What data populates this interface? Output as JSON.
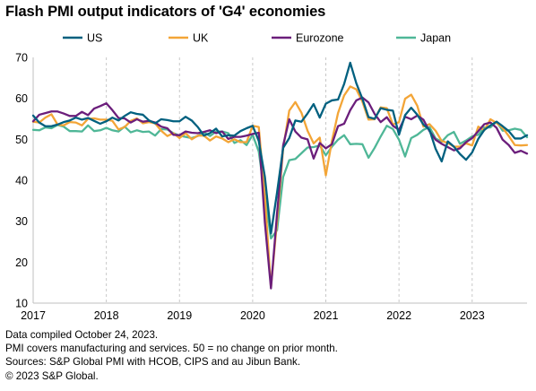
{
  "chart_data": {
    "type": "line",
    "title": "Flash PMI output indicators of 'G4' economies",
    "xlabel": "",
    "ylabel": "",
    "ylim": [
      10,
      70
    ],
    "yticks": [
      10,
      20,
      30,
      40,
      50,
      60,
      70
    ],
    "xlim": [
      "2017-01",
      "2023-10"
    ],
    "xticks": [
      "2017",
      "2018",
      "2019",
      "2020",
      "2021",
      "2022",
      "2023"
    ],
    "grid": "vertical-dashed",
    "legend_position": "top",
    "x": [
      "2017-01",
      "2017-02",
      "2017-03",
      "2017-04",
      "2017-05",
      "2017-06",
      "2017-07",
      "2017-08",
      "2017-09",
      "2017-10",
      "2017-11",
      "2017-12",
      "2018-01",
      "2018-02",
      "2018-03",
      "2018-04",
      "2018-05",
      "2018-06",
      "2018-07",
      "2018-08",
      "2018-09",
      "2018-10",
      "2018-11",
      "2018-12",
      "2019-01",
      "2019-02",
      "2019-03",
      "2019-04",
      "2019-05",
      "2019-06",
      "2019-07",
      "2019-08",
      "2019-09",
      "2019-10",
      "2019-11",
      "2019-12",
      "2020-01",
      "2020-02",
      "2020-03",
      "2020-04",
      "2020-05",
      "2020-06",
      "2020-07",
      "2020-08",
      "2020-09",
      "2020-10",
      "2020-11",
      "2020-12",
      "2021-01",
      "2021-02",
      "2021-03",
      "2021-04",
      "2021-05",
      "2021-06",
      "2021-07",
      "2021-08",
      "2021-09",
      "2021-10",
      "2021-11",
      "2021-12",
      "2022-01",
      "2022-02",
      "2022-03",
      "2022-04",
      "2022-05",
      "2022-06",
      "2022-07",
      "2022-08",
      "2022-09",
      "2022-10",
      "2022-11",
      "2022-12",
      "2023-01",
      "2023-02",
      "2023-03",
      "2023-04",
      "2023-05",
      "2023-06",
      "2023-07",
      "2023-08",
      "2023-09",
      "2023-10"
    ],
    "series": [
      {
        "name": "US",
        "color": "#00607f",
        "values": [
          55.8,
          54.1,
          53.2,
          53.2,
          53.6,
          54.2,
          54.6,
          55.3,
          54.8,
          55.2,
          54.5,
          53.8,
          54.4,
          55.3,
          54.6,
          55.7,
          56.6,
          56.2,
          56.0,
          54.6,
          53.9,
          54.9,
          54.7,
          54.4,
          54.4,
          55.5,
          54.6,
          53.0,
          50.9,
          51.5,
          52.6,
          50.7,
          51.0,
          50.9,
          52.0,
          52.7,
          53.3,
          49.6,
          40.9,
          27.0,
          37.0,
          47.9,
          50.3,
          54.6,
          54.3,
          56.3,
          58.6,
          55.3,
          58.7,
          59.5,
          59.7,
          63.5,
          68.7,
          63.7,
          59.9,
          55.4,
          55.0,
          57.6,
          57.2,
          57.0,
          51.1,
          55.9,
          57.7,
          56.0,
          53.6,
          52.3,
          47.7,
          44.6,
          49.5,
          48.2,
          46.4,
          45.0,
          46.8,
          50.1,
          52.3,
          53.4,
          54.3,
          53.2,
          52.0,
          50.2,
          50.2,
          51.0
        ]
      },
      {
        "name": "UK",
        "color": "#f3a537",
        "values": [
          54.3,
          54.1,
          55.3,
          56.1,
          53.6,
          53.4,
          54.2,
          54.1,
          53.4,
          55.0,
          55.1,
          54.8,
          54.8,
          54.5,
          52.4,
          53.0,
          54.5,
          55.1,
          53.9,
          54.2,
          53.9,
          52.1,
          50.8,
          51.5,
          50.3,
          51.5,
          50.0,
          50.9,
          50.9,
          49.7,
          50.7,
          50.2,
          49.3,
          50.0,
          49.3,
          49.3,
          53.3,
          53.0,
          36.0,
          13.8,
          30.0,
          47.7,
          57.0,
          59.1,
          56.5,
          52.1,
          49.0,
          50.4,
          41.2,
          49.6,
          56.4,
          60.7,
          62.9,
          62.2,
          59.2,
          54.8,
          54.9,
          57.8,
          57.6,
          53.6,
          54.2,
          59.9,
          60.9,
          58.2,
          53.1,
          53.7,
          52.1,
          49.6,
          49.1,
          48.2,
          48.2,
          49.0,
          48.5,
          53.1,
          52.2,
          54.9,
          54.0,
          52.8,
          50.8,
          48.6,
          48.5,
          48.6
        ]
      },
      {
        "name": "Eurozone",
        "color": "#6b1e7b",
        "values": [
          54.4,
          56.0,
          56.4,
          56.8,
          56.8,
          56.3,
          55.7,
          55.7,
          56.7,
          55.9,
          57.5,
          58.1,
          58.8,
          57.1,
          55.2,
          55.1,
          54.1,
          54.9,
          54.3,
          54.5,
          54.1,
          53.1,
          52.7,
          51.1,
          51.0,
          51.9,
          51.6,
          51.5,
          51.8,
          52.2,
          51.5,
          51.9,
          50.1,
          50.6,
          50.6,
          50.9,
          51.3,
          51.6,
          29.7,
          13.6,
          31.9,
          48.5,
          54.9,
          51.9,
          50.4,
          50.0,
          45.3,
          49.1,
          47.8,
          48.8,
          53.2,
          53.8,
          57.1,
          59.5,
          60.2,
          59.0,
          56.2,
          54.2,
          55.4,
          53.3,
          52.3,
          55.5,
          54.9,
          55.8,
          54.8,
          52.0,
          49.9,
          48.9,
          48.1,
          47.3,
          47.8,
          49.3,
          50.3,
          52.0,
          53.7,
          54.1,
          52.8,
          49.9,
          48.6,
          46.7,
          47.2,
          46.5
        ]
      },
      {
        "name": "Japan",
        "color": "#4fb797",
        "values": [
          52.3,
          52.2,
          52.9,
          52.7,
          53.5,
          53.1,
          52.0,
          52.0,
          51.9,
          53.4,
          52.0,
          52.2,
          52.8,
          52.2,
          51.9,
          53.1,
          51.7,
          52.2,
          51.8,
          51.9,
          50.9,
          52.5,
          52.4,
          51.5,
          50.9,
          50.6,
          50.3,
          50.8,
          51.7,
          50.8,
          51.9,
          51.9,
          51.5,
          49.1,
          49.8,
          48.6,
          51.1,
          47.0,
          36.2,
          25.8,
          27.8,
          40.8,
          44.9,
          45.2,
          46.6,
          48.0,
          48.1,
          48.5,
          46.1,
          48.2,
          49.9,
          51.0,
          48.8,
          48.9,
          48.8,
          45.5,
          47.9,
          50.7,
          53.3,
          52.5,
          49.9,
          45.8,
          50.3,
          51.1,
          52.3,
          53.0,
          50.2,
          49.4,
          51.0,
          51.8,
          48.9,
          49.7,
          50.7,
          51.1,
          52.9,
          52.9,
          54.3,
          52.1,
          52.2,
          52.6,
          52.3,
          50.5
        ]
      }
    ]
  },
  "footnotes": {
    "line1": "Data compiled October 24, 2023.",
    "line2": "PMI covers manufacturing and services. 50 = no change on prior month.",
    "line3": "Sources: S&P Global PMI with HCOB, CIPS and au Jibun Bank.",
    "line4": "© 2023 S&P Global."
  }
}
